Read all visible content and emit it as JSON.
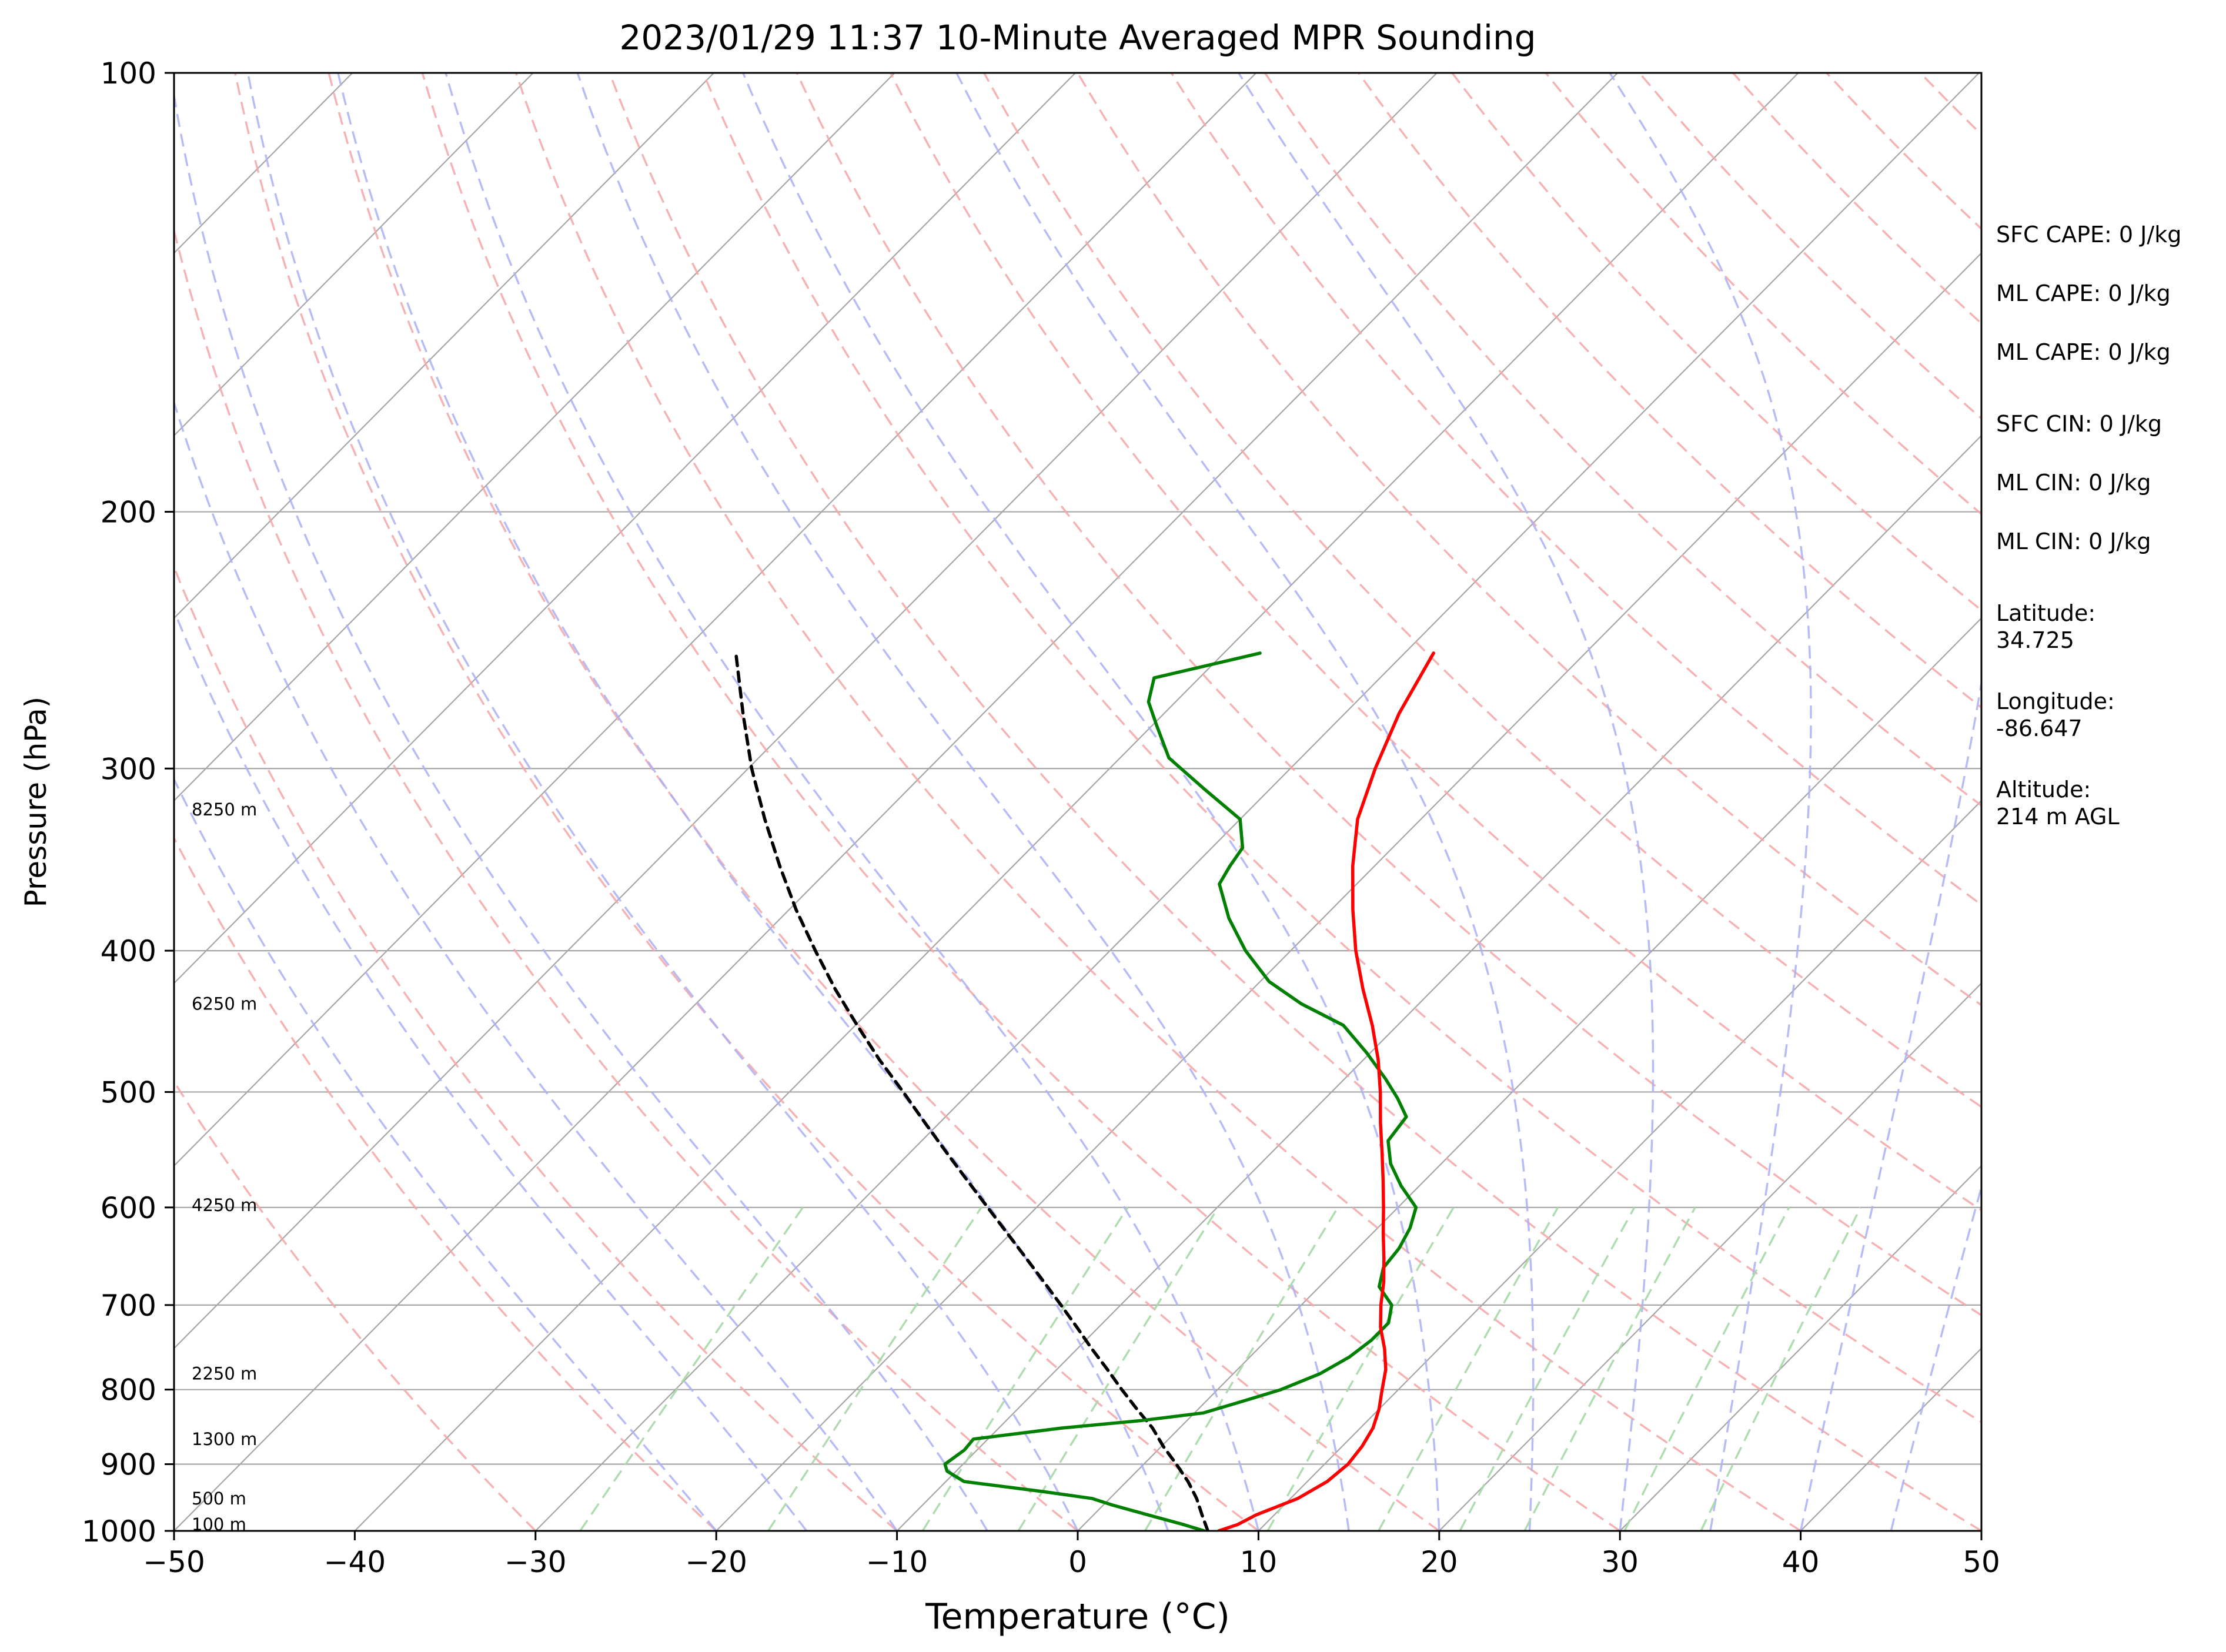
{
  "chart_data": {
    "type": "line",
    "chart_kind": "skew-T log-P sounding",
    "title": "2023/01/29 11:37 10-Minute Averaged MPR Sounding",
    "xlabel": "Temperature (°C)",
    "ylabel": "Pressure (hPa)",
    "xlim": [
      -50,
      50
    ],
    "ylim": [
      1000,
      100
    ],
    "y_scale": "log",
    "x_ticks": [
      "−50",
      "−40",
      "−30",
      "−20",
      "−10",
      "0",
      "10",
      "20",
      "30",
      "40",
      "50"
    ],
    "y_ticks": [
      "100",
      "200",
      "300",
      "400",
      "500",
      "600",
      "700",
      "800",
      "900",
      "1000"
    ],
    "grid": true,
    "colors": {
      "temperature": "#ff0000",
      "dewpoint": "#008000",
      "parcel": "#000000",
      "isotherm": "#a6a6a6",
      "dry_adiabat": "#f4a6a6",
      "moist_adiabat": "#aab0f4",
      "mixing_ratio": "#a9d8a9"
    },
    "series": [
      {
        "key": "temperature",
        "pressure": [
          1000,
          990,
          975,
          950,
          925,
          900,
          875,
          850,
          825,
          800,
          775,
          750,
          725,
          700,
          675,
          650,
          625,
          600,
          575,
          550,
          525,
          500,
          475,
          450,
          425,
          400,
          375,
          350,
          325,
          300,
          275,
          250
        ],
        "values": [
          7.8,
          8.5,
          9.0,
          10.4,
          11.1,
          11.3,
          11.1,
          10.7,
          10.0,
          9.1,
          8.2,
          7.0,
          5.6,
          4.4,
          3.3,
          2.0,
          0.6,
          -0.8,
          -2.3,
          -3.9,
          -5.6,
          -7.3,
          -9.2,
          -11.4,
          -13.9,
          -16.4,
          -18.8,
          -21.2,
          -23.5,
          -25.3,
          -27.0,
          -28.4
        ]
      },
      {
        "key": "dewpoint",
        "pressure": [
          1000,
          990,
          975,
          960,
          950,
          940,
          925,
          910,
          900,
          880,
          865,
          850,
          840,
          830,
          815,
          800,
          780,
          760,
          740,
          720,
          700,
          680,
          660,
          640,
          620,
          600,
          580,
          560,
          540,
          520,
          505,
          490,
          470,
          450,
          435,
          420,
          400,
          380,
          360,
          350,
          340,
          325,
          310,
          295,
          280,
          270,
          260,
          250
        ],
        "values": [
          7.0,
          5.5,
          3.0,
          0.5,
          -1.0,
          -4.0,
          -9.0,
          -10.5,
          -11.0,
          -10.7,
          -10.8,
          -6.5,
          -2.5,
          0.5,
          2.0,
          3.5,
          4.8,
          5.5,
          5.8,
          5.8,
          5.0,
          3.3,
          2.5,
          2.3,
          1.8,
          1.0,
          -1.0,
          -2.8,
          -4.2,
          -4.5,
          -6.0,
          -7.7,
          -10.2,
          -13.0,
          -16.5,
          -19.5,
          -22.5,
          -25.2,
          -27.6,
          -28.0,
          -28.3,
          -30.0,
          -33.6,
          -37.3,
          -39.8,
          -41.5,
          -42.5,
          -38.0
        ]
      },
      {
        "key": "parcel",
        "pressure": [
          1000,
          975,
          950,
          925,
          900,
          875,
          850,
          825,
          800,
          775,
          750,
          725,
          700,
          675,
          650,
          625,
          600,
          575,
          550,
          525,
          500,
          475,
          450,
          425,
          400,
          375,
          350,
          325,
          300,
          275,
          250
        ],
        "values": [
          7.2,
          6.0,
          4.8,
          3.4,
          1.8,
          0.1,
          -1.5,
          -3.4,
          -5.3,
          -7.2,
          -9.2,
          -11.2,
          -13.3,
          -15.5,
          -17.8,
          -20.2,
          -22.7,
          -25.3,
          -28.0,
          -30.8,
          -33.7,
          -36.8,
          -39.9,
          -43.1,
          -46.3,
          -49.6,
          -52.9,
          -56.3,
          -59.8,
          -63.3,
          -67.0
        ]
      }
    ],
    "height_labels": [
      {
        "pressure": 990,
        "label": "100 m"
      },
      {
        "pressure": 950,
        "label": "500 m"
      },
      {
        "pressure": 865,
        "label": "1300 m"
      },
      {
        "pressure": 780,
        "label": "2250 m"
      },
      {
        "pressure": 598,
        "label": "4250 m"
      },
      {
        "pressure": 435,
        "label": "6250 m"
      },
      {
        "pressure": 320,
        "label": "8250 m"
      }
    ]
  },
  "side_panel": {
    "sfc_cape": "SFC CAPE: 0 J/kg",
    "ml_cape_1": "ML CAPE: 0 J/kg",
    "ml_cape_2": "ML CAPE: 0 J/kg",
    "sfc_cin": "SFC CIN: 0 J/kg",
    "ml_cin_1": "ML CIN: 0 J/kg",
    "ml_cin_2": "ML CIN: 0 J/kg",
    "latitude": "Latitude:\n34.725",
    "longitude": "Longitude:\n-86.647",
    "altitude": "Altitude:\n214 m AGL"
  }
}
